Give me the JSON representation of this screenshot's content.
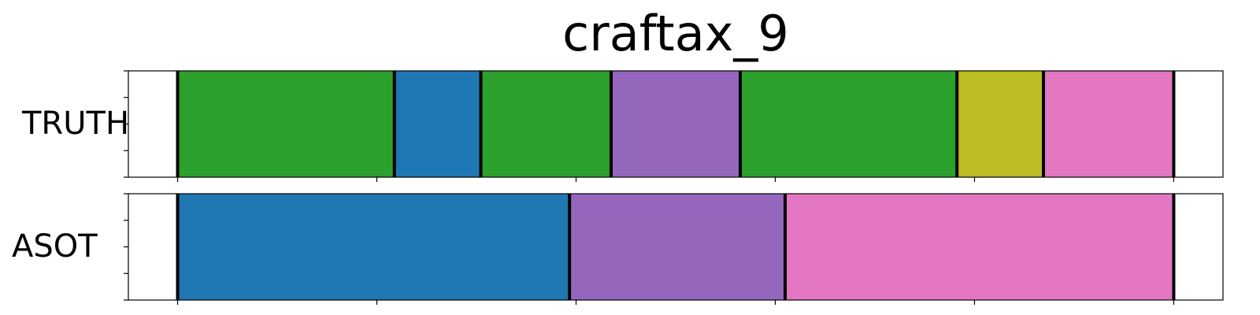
{
  "chart_data": {
    "type": "segmentation-timeline",
    "title": "craftax_9",
    "xlim": [
      0,
      1
    ],
    "rows": [
      {
        "label": "TRUTH",
        "segments": [
          {
            "start": 0.045,
            "end": 0.243,
            "color": "#2ca02c"
          },
          {
            "start": 0.243,
            "end": 0.322,
            "color": "#1f77b4"
          },
          {
            "start": 0.322,
            "end": 0.441,
            "color": "#2ca02c"
          },
          {
            "start": 0.441,
            "end": 0.559,
            "color": "#9467bd"
          },
          {
            "start": 0.559,
            "end": 0.757,
            "color": "#2ca02c"
          },
          {
            "start": 0.757,
            "end": 0.836,
            "color": "#bcbd22"
          },
          {
            "start": 0.836,
            "end": 0.955,
            "color": "#e377c2"
          }
        ],
        "boundaries": [
          0.045,
          0.243,
          0.322,
          0.441,
          0.559,
          0.757,
          0.836,
          0.955
        ]
      },
      {
        "label": "ASOT",
        "segments": [
          {
            "start": 0.045,
            "end": 0.403,
            "color": "#1f77b4"
          },
          {
            "start": 0.403,
            "end": 0.6,
            "color": "#9467bd"
          },
          {
            "start": 0.6,
            "end": 0.955,
            "color": "#e377c2"
          }
        ],
        "boundaries": [
          0.045,
          0.403,
          0.6,
          0.955
        ]
      }
    ],
    "x_tick_positions": [
      0.045,
      0.227,
      0.409,
      0.591,
      0.773,
      0.955
    ]
  }
}
